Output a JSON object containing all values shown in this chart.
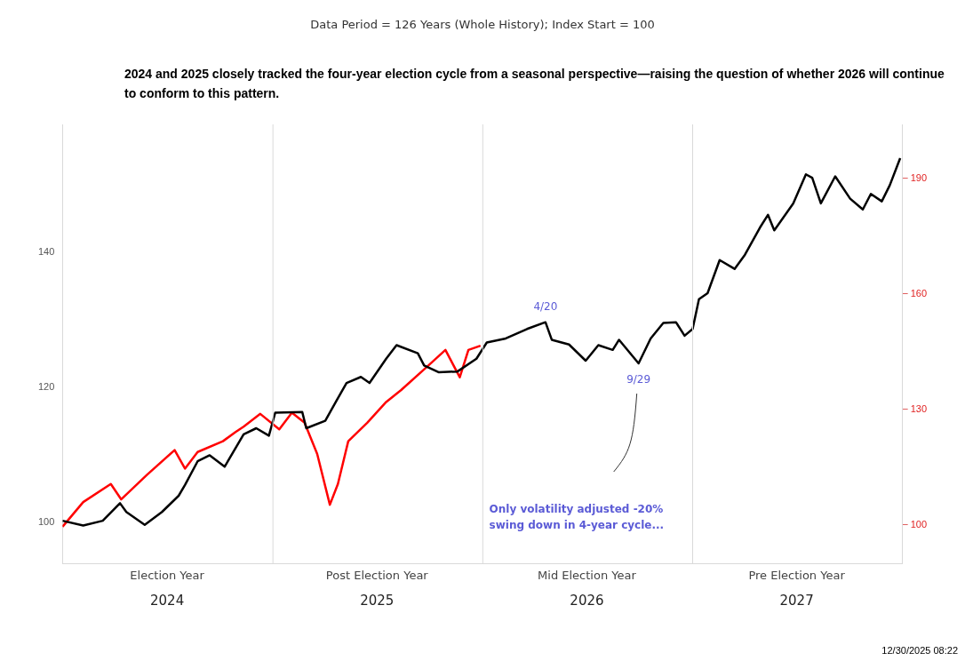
{
  "chart_data": {
    "type": "line",
    "title": "Data Period = 126 Years (Whole History); Index Start = 100",
    "subtitle": "2024 and 2025 closely tracked the four-year election cycle from a seasonal perspective—raising the question of whether 2026 will continue to conform to this pattern.",
    "xlim": [
      "2024-01-01",
      "2028-01-01"
    ],
    "xticks": [
      {
        "value": "2024-07-01",
        "label": "2024"
      },
      {
        "value": "2025-07-01",
        "label": "2025"
      },
      {
        "value": "2026-07-01",
        "label": "2026"
      },
      {
        "value": "2027-07-01",
        "label": "2027"
      }
    ],
    "ylim": [
      94,
      159
    ],
    "yticks": [
      100,
      120,
      140
    ],
    "y2lim": [
      90,
      204
    ],
    "y2ticks": [
      100,
      130,
      160,
      190
    ],
    "grid": false,
    "legend": false,
    "marker": "none",
    "line_style": "solid",
    "ref_lines": [
      {
        "axis": "x",
        "value": "2025-01-01",
        "color": "#d9d9d9"
      },
      {
        "axis": "x",
        "value": "2026-01-01",
        "color": "#d9d9d9"
      },
      {
        "axis": "x",
        "value": "2027-01-01",
        "color": "#d9d9d9"
      }
    ],
    "series": [
      {
        "color": "#000000",
        "x": [
          "2024-01-01",
          "2024-02-06",
          "2024-03-11",
          "2024-04-10",
          "2024-04-21",
          "2024-05-23",
          "2024-06-22",
          "2024-07-21",
          "2024-08-01",
          "2024-08-23",
          "2024-09-13",
          "2024-10-09",
          "2024-11-11",
          "2024-12-03",
          "2024-12-25",
          "2025-01-05",
          "2025-02-21",
          "2025-02-28",
          "2025-04-02",
          "2025-04-21",
          "2025-05-09",
          "2025-06-03",
          "2025-06-18",
          "2025-07-17",
          "2025-08-04",
          "2025-09-10",
          "2025-09-21",
          "2025-10-16",
          "2025-11-18",
          "2025-12-21",
          "2026-01-08",
          "2026-02-10",
          "2026-03-19",
          "2026-04-20",
          "2026-05-01",
          "2026-05-31",
          "2026-06-29",
          "2026-07-21",
          "2026-08-15",
          "2026-08-26",
          "2026-09-29",
          "2026-10-20",
          "2026-11-11",
          "2026-12-03",
          "2026-12-18",
          "2027-01-01",
          "2027-01-12",
          "2027-01-27",
          "2027-02-17",
          "2027-03-15",
          "2027-04-02",
          "2027-04-28",
          "2027-05-12",
          "2027-05-23",
          "2027-06-25",
          "2027-07-17",
          "2027-07-28",
          "2027-08-12",
          "2027-09-06",
          "2027-10-02",
          "2027-10-24",
          "2027-11-07",
          "2027-11-26",
          "2027-12-10",
          "2027-12-28"
        ],
        "values": [
          100.3,
          99.6,
          100.3,
          102.9,
          101.6,
          99.7,
          101.6,
          104,
          105.6,
          109.1,
          110,
          108.3,
          113.1,
          114,
          112.9,
          116.3,
          116.4,
          114,
          115.1,
          118,
          120.7,
          121.6,
          120.7,
          124.3,
          126.3,
          125.1,
          123.3,
          122.3,
          122.4,
          124.3,
          126.7,
          127.3,
          128.7,
          129.7,
          127.1,
          126.4,
          124,
          126.3,
          125.6,
          127.1,
          123.6,
          127.3,
          129.6,
          129.7,
          127.7,
          128.7,
          133.1,
          134,
          138.9,
          137.6,
          139.7,
          143.7,
          145.6,
          143.3,
          147.3,
          151.6,
          151.1,
          147.3,
          151.3,
          148,
          146.4,
          148.7,
          147.6,
          150,
          154
        ]
      },
      {
        "color": "#ff0000",
        "axis": "y2",
        "x": [
          "2024-01-01",
          "2024-02-06",
          "2024-03-25",
          "2024-04-12",
          "2024-05-27",
          "2024-07-14",
          "2024-08-01",
          "2024-08-23",
          "2024-10-06",
          "2024-10-28",
          "2024-11-11",
          "2024-12-10",
          "2025-01-12",
          "2025-02-03",
          "2025-02-25",
          "2025-03-19",
          "2025-04-10",
          "2025-04-24",
          "2025-05-12",
          "2025-06-14",
          "2025-07-17",
          "2025-08-12",
          "2025-09-25",
          "2025-10-28",
          "2025-11-22",
          "2025-12-07",
          "2025-12-28"
        ],
        "values": [
          99.5,
          105.9,
          110.6,
          106.6,
          113,
          119.4,
          114.6,
          118.9,
          121.7,
          124.1,
          125.5,
          128.8,
          124.8,
          129.1,
          126.5,
          118.4,
          105.2,
          110.6,
          121.7,
          126.5,
          131.9,
          135,
          140.9,
          145.4,
          138.3,
          145.4,
          146.5
        ]
      }
    ],
    "annotations": [
      {
        "text": "4/20",
        "x": "2026-04-20",
        "y": 129.7
      },
      {
        "text": "9/29",
        "x": "2026-09-29",
        "y": 123.6
      },
      "Only volatility adjusted -20%\nswing down in 4-year cycle...",
      "12/30/2025 08:22",
      "Election Year",
      "Post Election Year",
      "Mid Election Year",
      "Pre Election Year"
    ]
  }
}
